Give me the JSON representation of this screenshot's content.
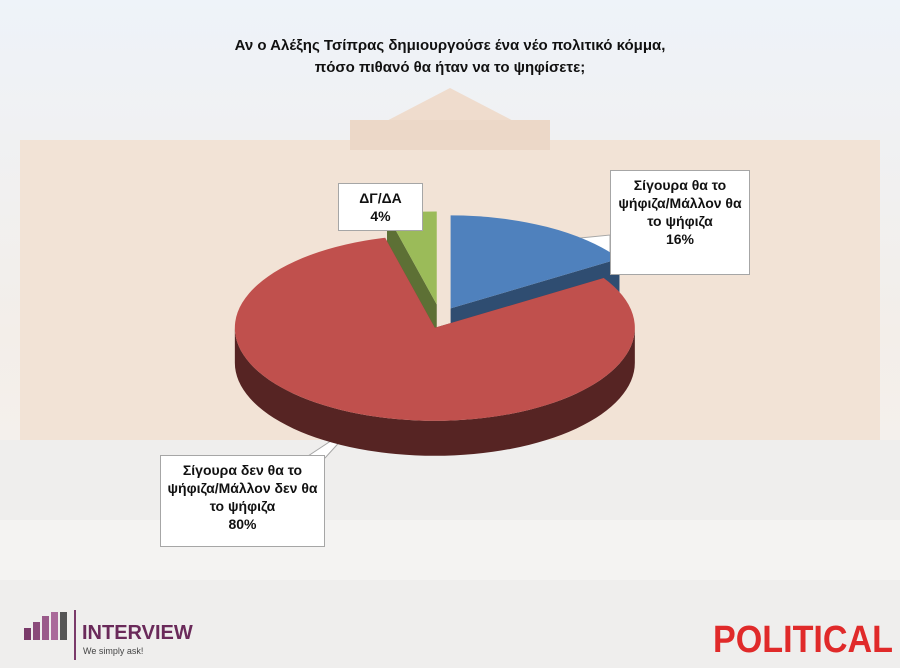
{
  "chart_data": {
    "type": "pie3d",
    "title": [
      "Αν ο Αλέξης Τσίπρας δημιουργούσε ένα νέο πολιτικό κόμμα,",
      "πόσο πιθανό θα ήταν να το ψηφίσετε;"
    ],
    "categories": [
      "Σίγουρα θα το ψήφιζα/Μάλλον θα το ψήφιζα",
      "Σίγουρα δεν θα το ψήφιζα/Μάλλον δεν θα το ψήφιζα",
      "ΔΓ/ΔΑ"
    ],
    "values": [
      16,
      80,
      4
    ],
    "value_labels": [
      "16%",
      "80%",
      "4%"
    ],
    "colors": [
      "#4f81bd",
      "#c0504d",
      "#9bbb59"
    ]
  },
  "logos": {
    "left_name": "INTERVIEW",
    "left_tagline": "We simply ask!",
    "right_name": "POLITICAL"
  }
}
